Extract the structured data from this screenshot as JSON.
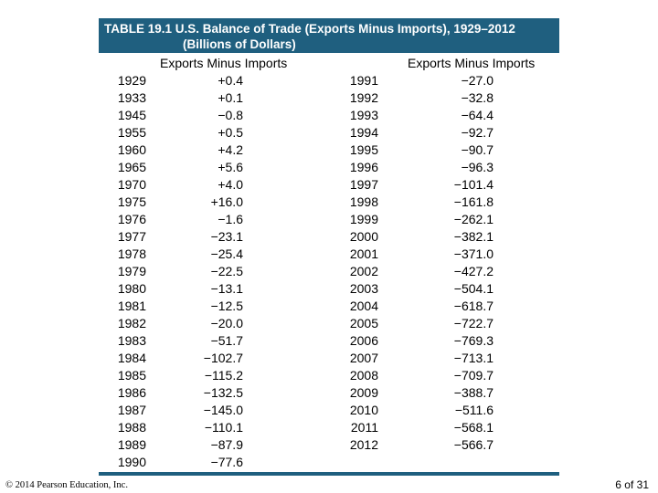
{
  "title": {
    "line1": "TABLE 19.1  U.S. Balance of Trade (Exports Minus Imports), 1929–2012",
    "line2": "(Billions of Dollars)"
  },
  "headers": {
    "left_value": "Exports Minus Imports",
    "right_value": "Exports Minus Imports"
  },
  "left_table": {
    "years": [
      "1929",
      "1933",
      "1945",
      "1955",
      "1960",
      "1965",
      "1970",
      "1975",
      "1976",
      "1977",
      "1978",
      "1979",
      "1980",
      "1981",
      "1982",
      "1983",
      "1984",
      "1985",
      "1986",
      "1987",
      "1988",
      "1989",
      "1990"
    ],
    "values": [
      "+0.4",
      "+0.1",
      "−0.8",
      "+0.5",
      "+4.2",
      "+5.6",
      "+4.0",
      "+16.0",
      "−1.6",
      "−23.1",
      "−25.4",
      "−22.5",
      "−13.1",
      "−12.5",
      "−20.0",
      "−51.7",
      "−102.7",
      "−115.2",
      "−132.5",
      "−145.0",
      "−110.1",
      "−87.9",
      "−77.6"
    ]
  },
  "right_table": {
    "years": [
      "1991",
      "1992",
      "1993",
      "1994",
      "1995",
      "1996",
      "1997",
      "1998",
      "1999",
      "2000",
      "2001",
      "2002",
      "2003",
      "2004",
      "2005",
      "2006",
      "2007",
      "2008",
      "2009",
      "2010",
      "2011",
      "2012"
    ],
    "values": [
      "−27.0",
      "−32.8",
      "−64.4",
      "−92.7",
      "−90.7",
      "−96.3",
      "−101.4",
      "−161.8",
      "−262.1",
      "−382.1",
      "−371.0",
      "−427.2",
      "−504.1",
      "−618.7",
      "−722.7",
      "−769.3",
      "−713.1",
      "−709.7",
      "−388.7",
      "−511.6",
      "−568.1",
      "−566.7"
    ]
  },
  "footer": {
    "copyright": "© 2014 Pearson Education, Inc.",
    "page": "6 of 31"
  },
  "colors": {
    "title_bar": "#1f5f7f",
    "title_text": "#ffffff"
  }
}
